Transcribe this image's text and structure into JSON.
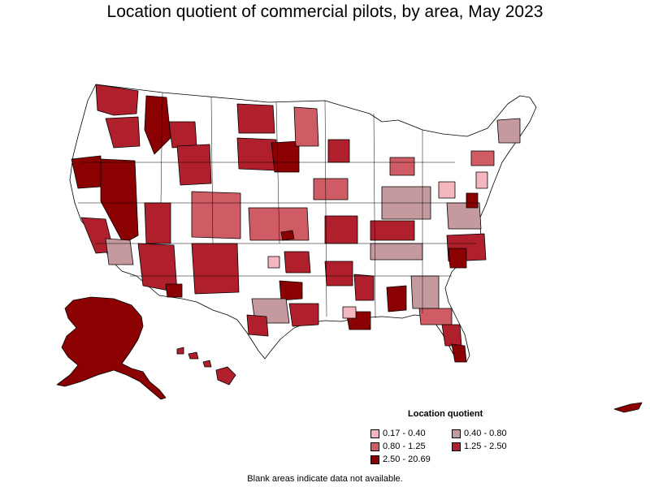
{
  "title": "Location quotient of commercial pilots, by area, May 2023",
  "legend": {
    "title": "Location quotient",
    "items": [
      {
        "label": "0.17 - 0.40",
        "color": "#f4b6bf"
      },
      {
        "label": "0.40 - 0.80",
        "color": "#c49a9e"
      },
      {
        "label": "0.80 - 1.25",
        "color": "#cf5c64"
      },
      {
        "label": "1.25 - 2.50",
        "color": "#b0202c"
      },
      {
        "label": "2.50 - 20.69",
        "color": "#8b0000"
      }
    ]
  },
  "footnote": "Blank areas indicate data not available.",
  "colors": {
    "no_data": "#ffffff",
    "border": "#000000"
  }
}
